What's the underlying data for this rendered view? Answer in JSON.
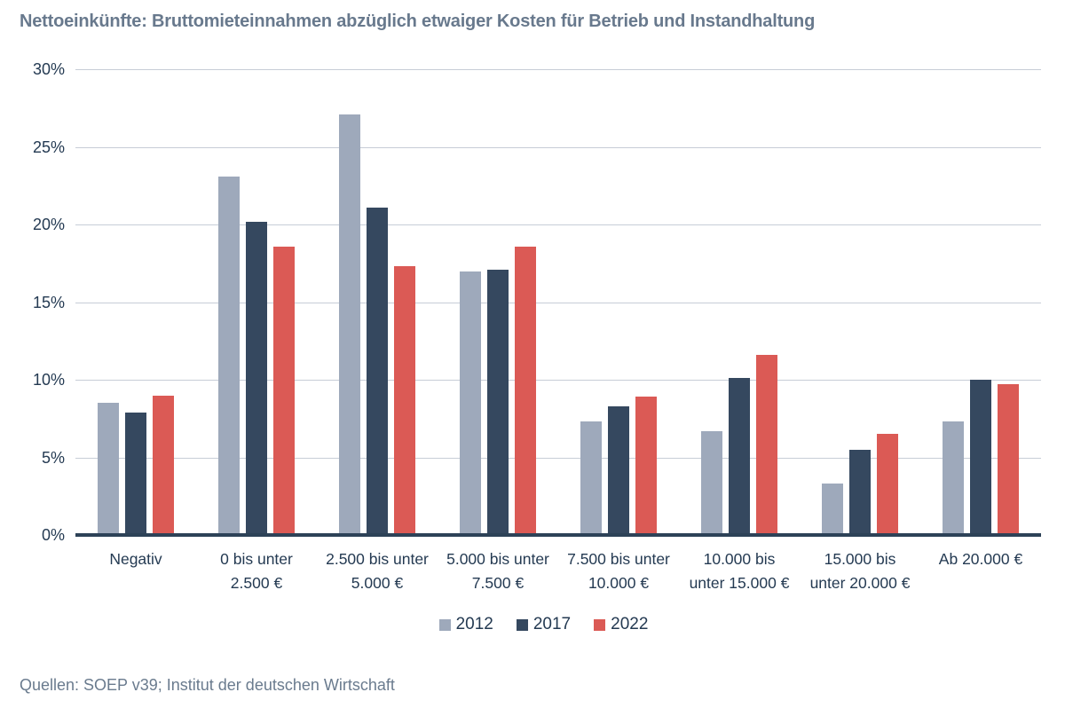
{
  "title": "Nettoeinkünfte: Bruttomieteinnahmen abzüglich etwaiger Kosten für Betrieb und Instandhaltung",
  "source": "Quellen: SOEP v39; Institut der deutschen Wirtschaft",
  "colors": {
    "title_text": "#68798D",
    "tick_text": "#243A52",
    "gridline": "#C7CDD7",
    "axis_line": "#2D4257",
    "background": "#FFFFFF"
  },
  "chart_data": {
    "type": "bar",
    "title": "Nettoeinkünfte: Bruttomieteinnahmen abzüglich etwaiger Kosten für Betrieb und Instandhaltung",
    "categories": [
      "Negativ",
      "0 bis unter\n2.500 €",
      "2.500 bis unter\n5.000 €",
      "5.000 bis unter\n7.500 €",
      "7.500 bis unter\n10.000 €",
      "10.000 bis\nunter 15.000 €",
      "15.000 bis\nunter 20.000 €",
      "Ab 20.000 €"
    ],
    "series": [
      {
        "name": "2012",
        "color": "#9EA9BB",
        "values": [
          8.5,
          23.1,
          27.1,
          17.0,
          7.3,
          6.7,
          3.3,
          7.3
        ]
      },
      {
        "name": "2017",
        "color": "#35485F",
        "values": [
          7.9,
          20.2,
          21.1,
          17.1,
          8.3,
          10.1,
          5.5,
          10.0
        ]
      },
      {
        "name": "2022",
        "color": "#DB5A55",
        "values": [
          9.0,
          18.6,
          17.3,
          18.6,
          8.9,
          11.6,
          6.5,
          9.7
        ]
      }
    ],
    "xlabel": "",
    "ylabel": "",
    "ylim": [
      0,
      30
    ],
    "y_tick_step": 5,
    "y_tick_suffix": "%",
    "y_ticks": [
      "30%",
      "25%",
      "20%",
      "15%",
      "10%",
      "5%",
      "0%"
    ],
    "grid": true,
    "legend_position": "bottom"
  }
}
